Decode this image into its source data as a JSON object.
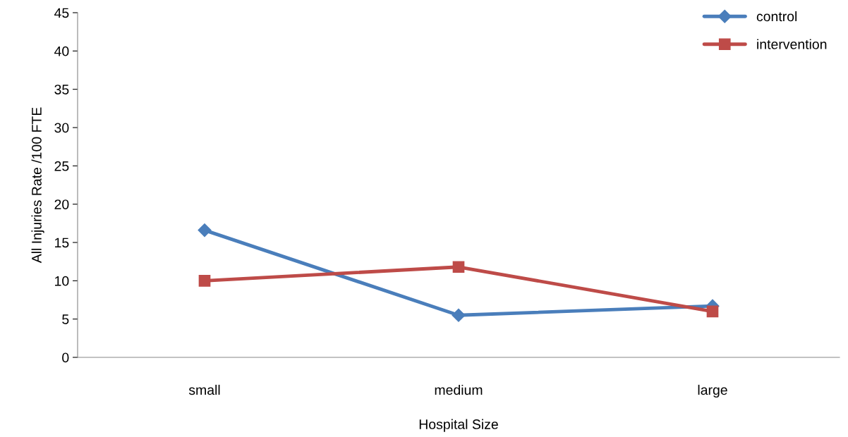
{
  "chart_data": {
    "type": "line",
    "xlabel": "Hospital Size",
    "ylabel": "All Injuries Rate /100 FTE",
    "categories": [
      "small",
      "medium",
      "large"
    ],
    "series": [
      {
        "name": "control",
        "color": "#4a7ebb",
        "values": [
          16.6,
          5.5,
          6.7
        ],
        "marker": "diamond"
      },
      {
        "name": "intervention",
        "color": "#be4b48",
        "values": [
          10.0,
          11.8,
          6.0
        ],
        "marker": "square"
      }
    ],
    "ylim": [
      0,
      45
    ],
    "yticks": [
      0,
      5,
      10,
      15,
      20,
      25,
      30,
      35,
      40,
      45
    ],
    "grid": false,
    "legend": "top right",
    "line_style": "solid"
  }
}
